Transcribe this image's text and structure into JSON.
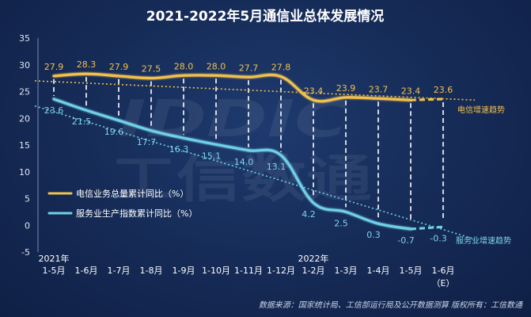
{
  "chart_data": {
    "type": "line",
    "title": "2021-2022年5月通信业总体发展情况",
    "categories": [
      "1-5月",
      "1-6月",
      "1-7月",
      "1-8月",
      "1-9月",
      "1-10月",
      "1-11月",
      "1-12月",
      "1-2月",
      "1-3月",
      "1-4月",
      "1-5月",
      "1-6月"
    ],
    "year_markers": [
      {
        "index": 0,
        "label": "2021年"
      },
      {
        "index": 8,
        "label": "2022年"
      }
    ],
    "estimate_marker": "（E）",
    "series": [
      {
        "name": "电信业务总量累计同比（%）",
        "color": "#f2c14e",
        "values": [
          27.9,
          28.3,
          27.9,
          27.5,
          28.0,
          28.0,
          27.7,
          27.8,
          23.4,
          23.9,
          23.7,
          23.4,
          23.6
        ],
        "labels": [
          "27.9",
          "28.3",
          "27.9",
          "27.5",
          "28.0",
          "28.0",
          "27.7",
          "27.8",
          "23.4",
          "23.9",
          "23.7",
          "23.4",
          "23.6"
        ],
        "trend_label": "电信增速趋势"
      },
      {
        "name": "服务业生产指数累计同比（%）",
        "color": "#6fd0e6",
        "values": [
          23.6,
          21.5,
          19.6,
          17.7,
          16.3,
          15.1,
          14.0,
          13.1,
          4.2,
          2.5,
          0.3,
          -0.7,
          -0.3
        ],
        "labels": [
          "23.6",
          "21.5",
          "19.6",
          "17.7",
          "16.3",
          "15.1",
          "14.0",
          "13.1",
          "4.2",
          "2.5",
          "0.3",
          "-0.7",
          "-0.3"
        ],
        "trend_label": "服务业增速趋势"
      }
    ],
    "ylim": [
      -5,
      35
    ],
    "yticks": [
      -5,
      0,
      5,
      10,
      15,
      20,
      25,
      30,
      35
    ],
    "legend": "bottom-left",
    "grid": false
  },
  "watermark": "IDDIC 工信数通",
  "source_note": "数据来源：国家统计局、工信部运行局及公开数据测算  版权所有：工信数通"
}
